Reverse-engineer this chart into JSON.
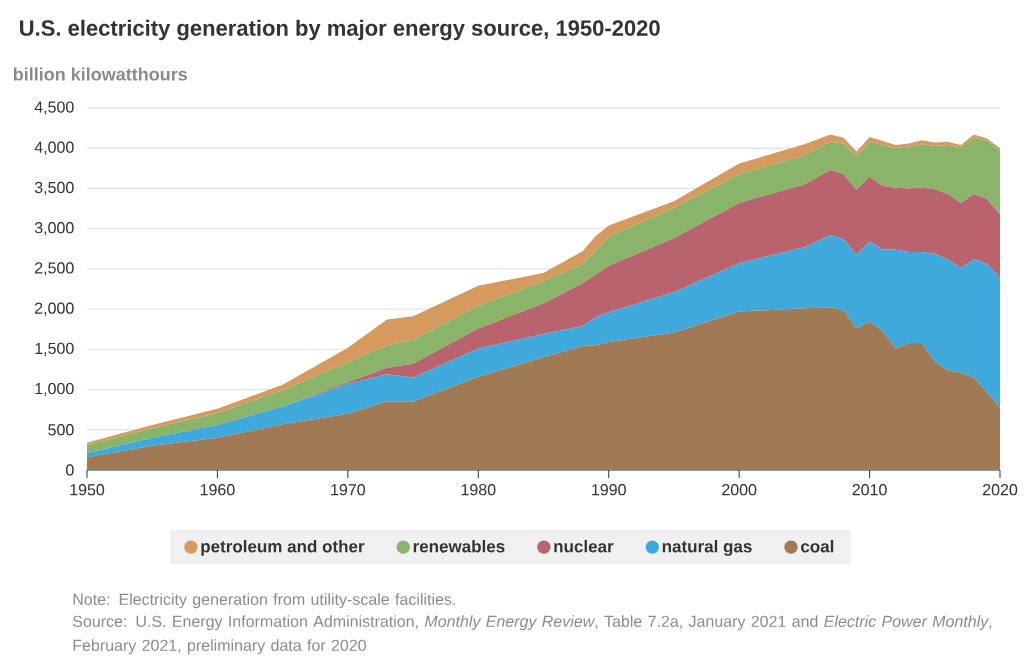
{
  "chart_data": {
    "type": "area",
    "stacked": true,
    "title": "U.S. electricity generation by major energy source, 1950-2020",
    "ylabel": "billion kilowatthours",
    "x": [
      1950,
      1955,
      1960,
      1965,
      1970,
      1973,
      1975,
      1980,
      1985,
      1988,
      1989,
      1990,
      1995,
      2000,
      2005,
      2007,
      2008,
      2009,
      2010,
      2011,
      2012,
      2013,
      2014,
      2015,
      2016,
      2017,
      2018,
      2019,
      2020
    ],
    "series": [
      {
        "name": "coal",
        "color": "#a07a55",
        "values": [
          160,
          300,
          400,
          570,
          700,
          850,
          850,
          1160,
          1400,
          1540,
          1550,
          1590,
          1710,
          1970,
          2010,
          2020,
          1990,
          1760,
          1850,
          1730,
          1510,
          1580,
          1580,
          1350,
          1240,
          1210,
          1150,
          970,
          770
        ]
      },
      {
        "name": "natural gas",
        "color": "#3fa9dc",
        "values": [
          50,
          100,
          160,
          220,
          370,
          340,
          300,
          350,
          290,
          250,
          350,
          370,
          500,
          600,
          760,
          900,
          880,
          920,
          990,
          1010,
          1230,
          1130,
          1130,
          1340,
          1380,
          1300,
          1470,
          1590,
          1620
        ]
      },
      {
        "name": "nuclear",
        "color": "#b9636f",
        "values": [
          0,
          0,
          0,
          0,
          20,
          80,
          170,
          250,
          380,
          530,
          530,
          580,
          670,
          750,
          780,
          810,
          810,
          800,
          810,
          790,
          770,
          790,
          800,
          800,
          810,
          810,
          810,
          810,
          790
        ]
      },
      {
        "name": "renewables",
        "color": "#8ab46a",
        "values": [
          100,
          120,
          150,
          200,
          250,
          280,
          300,
          280,
          280,
          240,
          300,
          360,
          380,
          360,
          360,
          350,
          380,
          420,
          430,
          510,
          490,
          520,
          540,
          540,
          610,
          690,
          700,
          720,
          790
        ]
      },
      {
        "name": "petroleum and other",
        "color": "#d69a5e",
        "values": [
          30,
          40,
          50,
          70,
          180,
          320,
          290,
          250,
          100,
          160,
          180,
          140,
          80,
          130,
          140,
          90,
          70,
          60,
          60,
          50,
          40,
          40,
          50,
          40,
          40,
          30,
          40,
          30,
          30
        ]
      }
    ],
    "xlim": [
      1950,
      2020
    ],
    "xticks": [
      1950,
      1960,
      1970,
      1980,
      1990,
      2000,
      2010,
      2020
    ],
    "ylim": [
      0,
      4500
    ],
    "yticks": [
      0,
      500,
      {
        "value": 1000,
        "label": "1,000"
      },
      {
        "value": 1500,
        "label": "1,500"
      },
      {
        "value": 2000,
        "label": "2,000"
      },
      {
        "value": 2500,
        "label": "2,500"
      },
      {
        "value": 3000,
        "label": "3,000"
      },
      {
        "value": 3500,
        "label": "3,500"
      },
      {
        "value": 4000,
        "label": "4,000"
      },
      {
        "value": 4500,
        "label": "4,500"
      }
    ],
    "grid": "y",
    "legend": "bottom",
    "annotations": [
      "Note: Electricity generation from utility-scale facilities.",
      "Source: U.S. Energy Information Administration, *Monthly Energy Review*, Table 7.2a, January 2021 and *Electric Power Monthly*, February 2021, preliminary data for 2020"
    ]
  }
}
